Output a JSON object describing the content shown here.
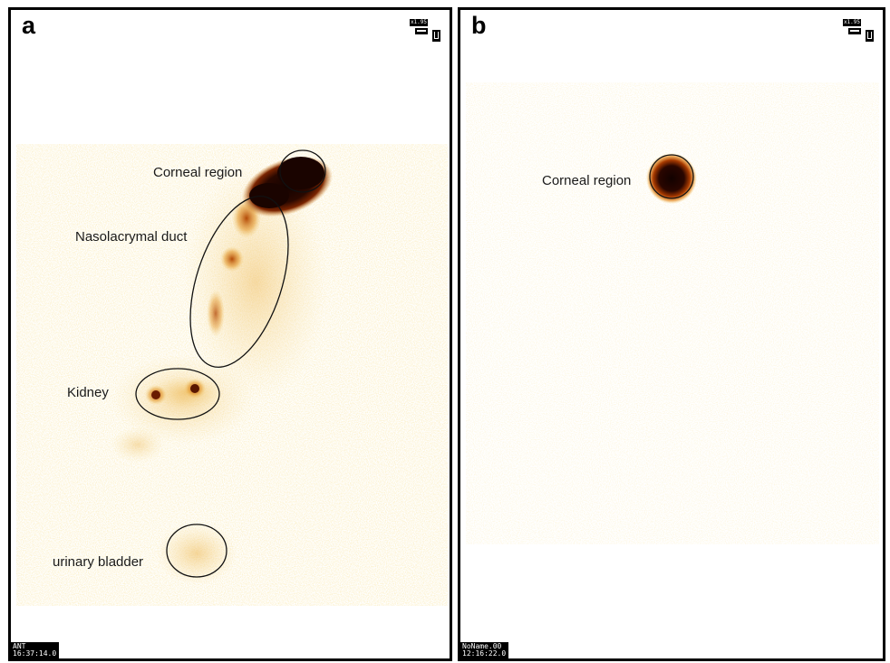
{
  "panels": [
    {
      "letter": "a",
      "zoom": "x1.95",
      "labels": {
        "corneal": "Corneal region",
        "duct": "Nasolacrymal duct",
        "kidney": "Kidney",
        "bladder": "urinary bladder"
      },
      "stamp": {
        "line1": "ANT",
        "line2": "16:37:14.0"
      }
    },
    {
      "letter": "b",
      "zoom": "x1.95",
      "labels": {
        "corneal": "Corneal region"
      },
      "stamp": {
        "line1": "NoName.00",
        "line2": "12:16:22.0"
      }
    }
  ],
  "colors": {
    "hot_dark": "#1a0500",
    "hot_mid": "#8a2a00",
    "hot_orange": "#e07a10",
    "background_speckle": "#f3d070"
  }
}
